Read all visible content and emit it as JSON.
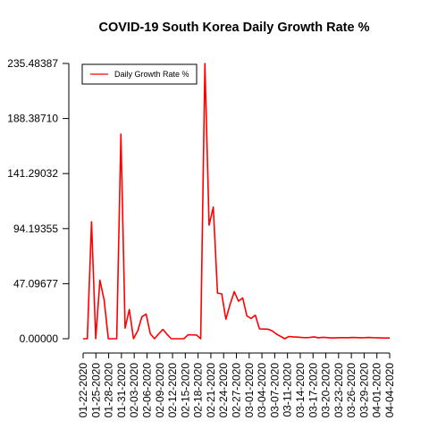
{
  "chart_data": {
    "type": "line",
    "title": "COVID-19 South Korea Daily Growth Rate %",
    "xlabel": "",
    "ylabel": "",
    "ylim": [
      0,
      235.48387
    ],
    "yticks": [
      "0.00000",
      "47.09677",
      "94.19355",
      "141.29032",
      "188.38710",
      "235.48387"
    ],
    "xtick_labels": [
      "01-22-2020",
      "01-25-2020",
      "01-28-2020",
      "01-31-2020",
      "02-03-2020",
      "02-06-2020",
      "02-09-2020",
      "02-12-2020",
      "02-15-2020",
      "02-18-2020",
      "02-21-2020",
      "02-24-2020",
      "02-27-2020",
      "03-01-2020",
      "03-04-2020",
      "03-07-2020",
      "03-11-2020",
      "03-14-2020",
      "03-17-2020",
      "03-20-2020",
      "03-23-2020",
      "03-26-2020",
      "03-29-2020",
      "04-01-2020",
      "04-04-2020"
    ],
    "legend": {
      "position": "top-left",
      "entries": [
        "Daily Growth Rate %"
      ]
    },
    "grid": false,
    "series": [
      {
        "name": "Daily Growth Rate %",
        "color": "#ff0000",
        "values": [
          0,
          0,
          100,
          0,
          50,
          33.3,
          0,
          0,
          0,
          175,
          9.1,
          25,
          0,
          6.7,
          18.8,
          21.1,
          4.3,
          0,
          4.2,
          8,
          3.7,
          0,
          0,
          0,
          0,
          3.4,
          3.3,
          3.2,
          0,
          235.48,
          97.1,
          112.6,
          39,
          38.4,
          16.7,
          29.4,
          40.3,
          32.1,
          34.9,
          19.5,
          17.3,
          20.2,
          8.4,
          8.3,
          8.2,
          6.8,
          4.1,
          2.1,
          0,
          1.9,
          1.6,
          1.4,
          1.1,
          0.9,
          1.1,
          1.6,
          0.8,
          1.2,
          1,
          0.7,
          0.7,
          0.9,
          0.9,
          0.8,
          1.1,
          1,
          0.8,
          0.9,
          1.1,
          0.9,
          0.8,
          0.7,
          0.6,
          0.6
        ]
      }
    ]
  }
}
